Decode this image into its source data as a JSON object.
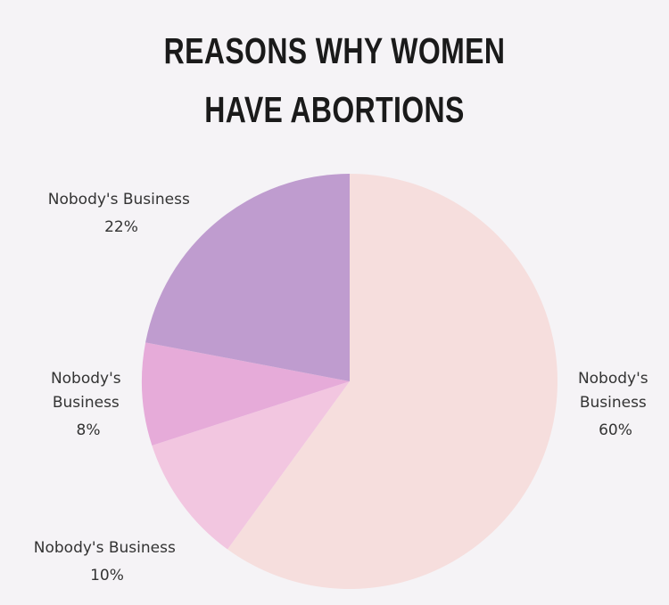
{
  "chart_data": {
    "type": "pie",
    "title": "REASONS WHY WOMEN HAVE ABORTIONS",
    "title_lines": [
      "REASONS WHY WOMEN",
      "HAVE ABORTIONS"
    ],
    "slices": [
      {
        "label": "Nobody's Business",
        "value": 60,
        "value_label": "60%",
        "color": "#f6dedd"
      },
      {
        "label": "Nobody's Business",
        "value": 10,
        "value_label": "10%",
        "color": "#f2c6e0"
      },
      {
        "label": "Nobody's Business",
        "value": 8,
        "value_label": "8%",
        "color": "#e6abd9"
      },
      {
        "label": "Nobody's Business",
        "value": 22,
        "value_label": "22%",
        "color": "#bf9ccf"
      }
    ],
    "start_angle": "12 o'clock",
    "direction": "clockwise",
    "legend": "none"
  },
  "colors": {
    "background": "#f5f3f6",
    "text": "#333333",
    "title": "#1a1a1a"
  }
}
